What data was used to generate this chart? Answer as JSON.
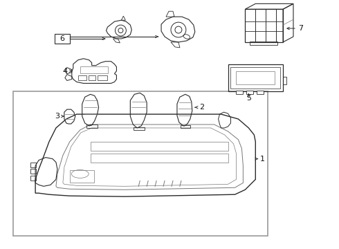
{
  "background_color": "#ffffff",
  "line_color": "#2a2a2a",
  "line_color_light": "#777777",
  "border_color": "#999999",
  "label_color": "#111111",
  "figsize": [
    4.9,
    3.6
  ],
  "dpi": 100
}
